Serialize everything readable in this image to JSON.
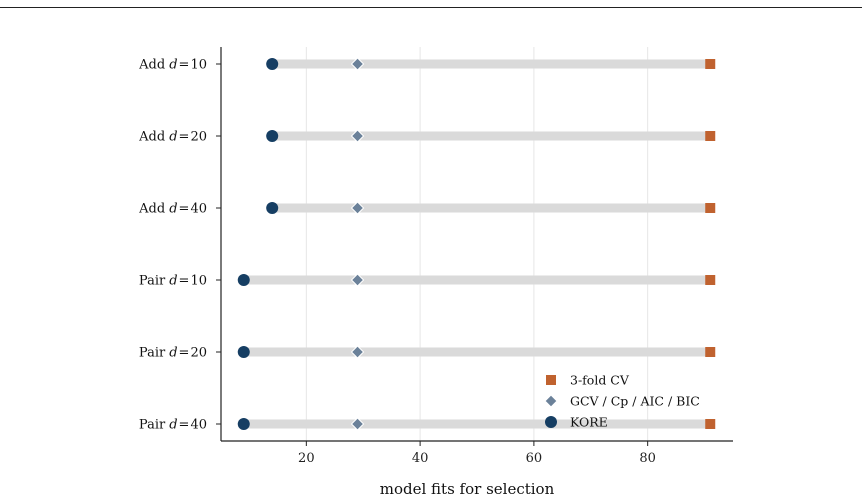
{
  "chart_data": {
    "type": "dot",
    "title": "",
    "xlabel": "model fits for selection",
    "ylabel": "",
    "xlim": [
      5,
      95
    ],
    "xticks": [
      20,
      40,
      60,
      80
    ],
    "grid": "vertical",
    "legend_position": "bottom-right",
    "categories": [
      {
        "prefix": "Add",
        "d": "10"
      },
      {
        "prefix": "Add",
        "d": "20"
      },
      {
        "prefix": "Add",
        "d": "40"
      },
      {
        "prefix": "Pair",
        "d": "10"
      },
      {
        "prefix": "Pair",
        "d": "20"
      },
      {
        "prefix": "Pair",
        "d": "40"
      }
    ],
    "series": [
      {
        "name": "3-fold CV",
        "marker": "square",
        "color": "#c0622f",
        "values": [
          91,
          91,
          91,
          91,
          91,
          91
        ]
      },
      {
        "name": "GCV / Cp / AIC / BIC",
        "marker": "diamond",
        "color": "#6b8199",
        "values": [
          29,
          29,
          29,
          29,
          29,
          29
        ]
      },
      {
        "name": "KORE",
        "marker": "circle",
        "color": "#163e63",
        "values": [
          14,
          14,
          14,
          9,
          9,
          9
        ]
      }
    ],
    "range_bar_color": "#dadada"
  }
}
